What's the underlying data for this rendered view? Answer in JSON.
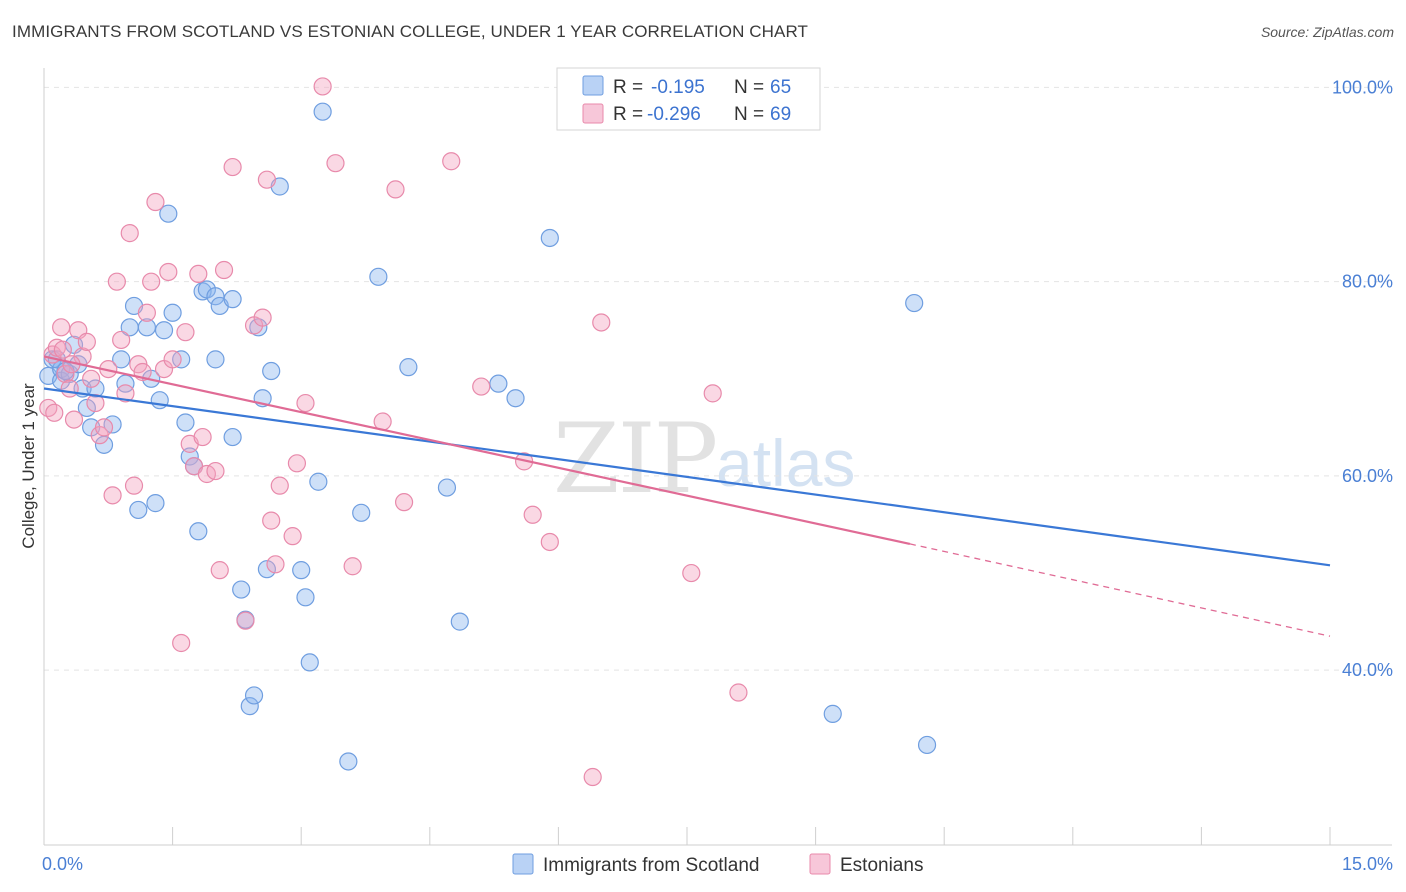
{
  "header": {
    "title": "IMMIGRANTS FROM SCOTLAND VS ESTONIAN COLLEGE, UNDER 1 YEAR CORRELATION CHART",
    "source": "Source: ZipAtlas.com"
  },
  "watermark": {
    "zip": "ZIP",
    "atlas": "atlas"
  },
  "legend": {
    "rows": [
      {
        "r_label": "R =",
        "r_value": "-0.195",
        "n_label": "N =",
        "n_value": "65",
        "color": "#8ab4ee"
      },
      {
        "r_label": "R =",
        "r_value": "-0.296",
        "n_label": "N =",
        "n_value": "69",
        "color": "#f2a2bf"
      }
    ]
  },
  "bottom_legend": [
    {
      "label": "Immigrants from Scotland",
      "color": "#8ab4ee"
    },
    {
      "label": "Estonians",
      "color": "#f2a2bf"
    }
  ],
  "chart_data": {
    "type": "scatter",
    "title": "IMMIGRANTS FROM SCOTLAND VS ESTONIAN COLLEGE, UNDER 1 YEAR CORRELATION CHART",
    "xlabel": "",
    "ylabel": "College, Under 1 year",
    "xlim": [
      0,
      15
    ],
    "ylim": [
      22,
      102
    ],
    "x_tick_labels": [
      {
        "value": 0,
        "label": "0.0%"
      },
      {
        "value": 15,
        "label": "15.0%"
      }
    ],
    "y_tick_labels": [
      {
        "value": 40,
        "label": "40.0%"
      },
      {
        "value": 60,
        "label": "60.0%"
      },
      {
        "value": 80,
        "label": "80.0%"
      },
      {
        "value": 100,
        "label": "100.0%"
      }
    ],
    "grid": true,
    "legend_position": "top-center",
    "series": [
      {
        "name": "Immigrants from Scotland",
        "color": "#8ab4ee",
        "stroke": "#6f9ee0",
        "trend": {
          "x": [
            0,
            15
          ],
          "y": [
            69.0,
            50.8
          ],
          "color": "#3a78d6"
        },
        "points": [
          [
            0.05,
            70.3
          ],
          [
            0.1,
            72.0
          ],
          [
            0.2,
            71.0
          ],
          [
            0.2,
            69.8
          ],
          [
            0.3,
            70.5
          ],
          [
            0.35,
            73.5
          ],
          [
            0.4,
            71.5
          ],
          [
            0.45,
            69.0
          ],
          [
            0.5,
            67.0
          ],
          [
            0.55,
            65.0
          ],
          [
            0.6,
            69.0
          ],
          [
            0.7,
            63.2
          ],
          [
            0.8,
            65.3
          ],
          [
            0.9,
            72.0
          ],
          [
            0.95,
            69.5
          ],
          [
            1.0,
            75.3
          ],
          [
            1.05,
            77.5
          ],
          [
            1.1,
            56.5
          ],
          [
            1.2,
            75.3
          ],
          [
            1.25,
            70.0
          ],
          [
            1.3,
            57.2
          ],
          [
            1.35,
            67.8
          ],
          [
            1.4,
            75.0
          ],
          [
            1.45,
            87.0
          ],
          [
            1.5,
            76.8
          ],
          [
            1.6,
            72.0
          ],
          [
            1.65,
            65.5
          ],
          [
            1.7,
            62.0
          ],
          [
            1.75,
            61.0
          ],
          [
            1.8,
            54.3
          ],
          [
            1.85,
            79.0
          ],
          [
            1.9,
            79.2
          ],
          [
            2.0,
            78.5
          ],
          [
            2.0,
            72.0
          ],
          [
            2.05,
            77.5
          ],
          [
            2.2,
            78.2
          ],
          [
            2.2,
            64.0
          ],
          [
            2.3,
            48.3
          ],
          [
            2.35,
            45.2
          ],
          [
            2.4,
            36.3
          ],
          [
            2.45,
            37.4
          ],
          [
            2.5,
            75.3
          ],
          [
            2.55,
            68.0
          ],
          [
            2.6,
            50.4
          ],
          [
            2.65,
            70.8
          ],
          [
            2.75,
            89.8
          ],
          [
            3.0,
            50.3
          ],
          [
            3.05,
            47.5
          ],
          [
            3.1,
            40.8
          ],
          [
            3.2,
            59.4
          ],
          [
            3.25,
            97.5
          ],
          [
            3.55,
            30.6
          ],
          [
            3.7,
            56.2
          ],
          [
            3.9,
            80.5
          ],
          [
            4.25,
            71.2
          ],
          [
            4.7,
            58.8
          ],
          [
            4.85,
            45.0
          ],
          [
            5.3,
            69.5
          ],
          [
            5.5,
            68.0
          ],
          [
            5.9,
            84.5
          ],
          [
            10.15,
            77.8
          ],
          [
            10.3,
            32.3
          ],
          [
            9.2,
            35.5
          ],
          [
            0.15,
            72.0
          ],
          [
            0.25,
            70.8
          ]
        ]
      },
      {
        "name": "Estonians",
        "color": "#f2a2bf",
        "stroke": "#e88aab",
        "trend": {
          "x": [
            0,
            10.1
          ],
          "y": [
            72.3,
            53.0
          ],
          "dash_to": [
            15,
            43.5
          ],
          "color": "#e06b95"
        },
        "points": [
          [
            0.05,
            67.0
          ],
          [
            0.1,
            72.5
          ],
          [
            0.15,
            73.2
          ],
          [
            0.2,
            75.3
          ],
          [
            0.25,
            70.5
          ],
          [
            0.3,
            69.0
          ],
          [
            0.35,
            65.8
          ],
          [
            0.4,
            75.0
          ],
          [
            0.45,
            72.3
          ],
          [
            0.5,
            73.8
          ],
          [
            0.55,
            70.0
          ],
          [
            0.6,
            67.5
          ],
          [
            0.65,
            64.2
          ],
          [
            0.7,
            65.0
          ],
          [
            0.75,
            71.0
          ],
          [
            0.8,
            58.0
          ],
          [
            0.85,
            80.0
          ],
          [
            0.9,
            74.0
          ],
          [
            0.95,
            68.5
          ],
          [
            1.0,
            85.0
          ],
          [
            1.05,
            59.0
          ],
          [
            1.1,
            71.5
          ],
          [
            1.15,
            70.7
          ],
          [
            1.2,
            76.8
          ],
          [
            1.25,
            80.0
          ],
          [
            1.3,
            88.2
          ],
          [
            1.4,
            71.0
          ],
          [
            1.45,
            81.0
          ],
          [
            1.5,
            72.0
          ],
          [
            1.6,
            42.8
          ],
          [
            1.65,
            74.8
          ],
          [
            1.7,
            63.3
          ],
          [
            1.75,
            61.0
          ],
          [
            1.8,
            80.8
          ],
          [
            1.85,
            64.0
          ],
          [
            1.9,
            60.2
          ],
          [
            2.0,
            60.5
          ],
          [
            2.05,
            50.3
          ],
          [
            2.1,
            81.2
          ],
          [
            2.2,
            91.8
          ],
          [
            2.35,
            45.1
          ],
          [
            2.45,
            75.5
          ],
          [
            2.55,
            76.3
          ],
          [
            2.6,
            90.5
          ],
          [
            2.65,
            55.4
          ],
          [
            2.7,
            50.9
          ],
          [
            2.75,
            59.0
          ],
          [
            2.9,
            53.8
          ],
          [
            2.95,
            61.3
          ],
          [
            3.05,
            67.5
          ],
          [
            3.25,
            100.1
          ],
          [
            3.4,
            92.2
          ],
          [
            3.6,
            50.7
          ],
          [
            3.95,
            65.6
          ],
          [
            4.1,
            89.5
          ],
          [
            4.2,
            57.3
          ],
          [
            4.75,
            92.4
          ],
          [
            5.1,
            69.2
          ],
          [
            5.6,
            61.5
          ],
          [
            5.7,
            56.0
          ],
          [
            5.9,
            53.2
          ],
          [
            6.5,
            75.8
          ],
          [
            7.55,
            50.0
          ],
          [
            7.8,
            68.5
          ],
          [
            8.1,
            37.7
          ],
          [
            6.4,
            29.0
          ],
          [
            0.12,
            66.5
          ],
          [
            0.22,
            73.0
          ],
          [
            0.32,
            71.5
          ]
        ]
      }
    ]
  }
}
